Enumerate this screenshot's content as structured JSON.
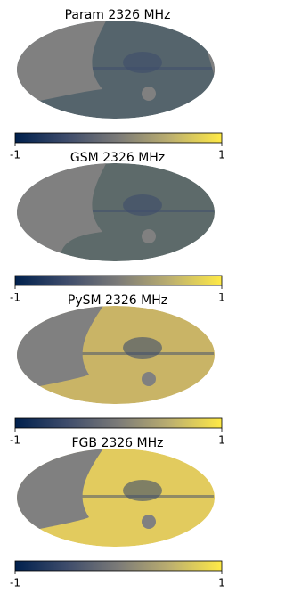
{
  "chart_data": [
    {
      "type": "map",
      "title": "Param 2326 MHz",
      "color": "#55646c",
      "xlim": [
        -1,
        1
      ],
      "xticks": [
        -1,
        1
      ],
      "colors": [
        "#00204d",
        "#3e4c6b",
        "#7c7b78",
        "#bcaf6f",
        "#ffea46"
      ]
    },
    {
      "type": "map",
      "title": "GSM 2326 MHz",
      "color": "#5d6a6a",
      "xlim": [
        -1,
        1
      ],
      "xticks": [
        -1,
        1
      ],
      "colors": [
        "#00204d",
        "#3e4c6b",
        "#7c7b78",
        "#bcaf6f",
        "#ffea46"
      ]
    },
    {
      "type": "map",
      "title": "PySM 2326 MHz",
      "color": "#c9b466",
      "xlim": [
        -1,
        1
      ],
      "xticks": [
        -1,
        1
      ],
      "colors": [
        "#00204d",
        "#3e4c6b",
        "#7c7b78",
        "#bcaf6f",
        "#ffea46"
      ]
    },
    {
      "type": "map",
      "title": "FGB 2326 MHz",
      "color": "#e2cb5e",
      "xlim": [
        -1,
        1
      ],
      "xticks": [
        -1,
        1
      ],
      "colors": [
        "#00204d",
        "#3e4c6b",
        "#7c7b78",
        "#bcaf6f",
        "#ffea46"
      ]
    }
  ]
}
